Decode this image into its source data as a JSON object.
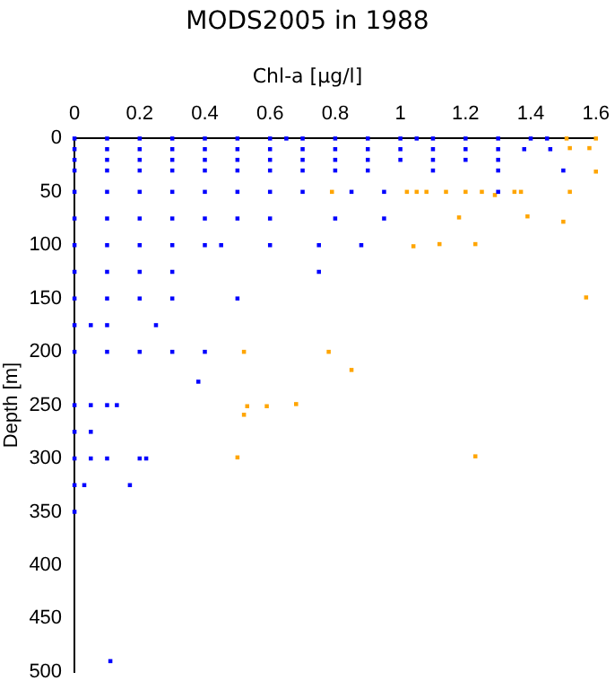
{
  "chart_data": {
    "type": "scatter",
    "title": "MODS2005 in 1988",
    "xlabel": "Chl-a [µg/l]",
    "ylabel": "Depth [m]",
    "xlim": [
      0,
      1.6
    ],
    "xticks": [
      0,
      0.2,
      0.4,
      0.6,
      0.8,
      1,
      1.2,
      1.4,
      1.6
    ],
    "ylim": [
      500,
      0
    ],
    "yticks": [
      0,
      50,
      100,
      150,
      200,
      250,
      300,
      350,
      400,
      450,
      500
    ],
    "grid": false,
    "legend": false,
    "marker": "square",
    "series": [
      {
        "color": "#0000ff",
        "x": [
          0,
          0.1,
          0.2,
          0.3,
          0.4,
          0.5,
          0.6,
          0.65,
          0.7,
          0.8,
          0.9,
          1.0,
          1.05,
          1.1,
          1.2,
          1.3,
          1.4,
          1.45,
          0,
          0.1,
          0.2,
          0.3,
          0.4,
          0.5,
          0.6,
          0.7,
          0.8,
          0.9,
          1.0,
          1.1,
          1.2,
          1.3,
          1.38,
          1.46,
          0,
          0.1,
          0.2,
          0.3,
          0.4,
          0.5,
          0.6,
          0.7,
          0.8,
          0.9,
          1.0,
          1.1,
          1.2,
          1.3,
          0,
          0.1,
          0.2,
          0.3,
          0.4,
          0.5,
          0.6,
          0.7,
          0.8,
          0.9,
          1.1,
          1.3,
          1.5,
          0,
          0.1,
          0.2,
          0.3,
          0.4,
          0.5,
          0.6,
          0.7,
          0.85,
          0.95,
          1.3,
          0,
          0.1,
          0.2,
          0.3,
          0.4,
          0.5,
          0.6,
          0.8,
          0.95,
          0,
          0.1,
          0.2,
          0.3,
          0.4,
          0.45,
          0.6,
          0.75,
          0.88,
          0,
          0.1,
          0.2,
          0.3,
          0.75,
          0,
          0.1,
          0.2,
          0.3,
          0.5,
          0,
          0.05,
          0.1,
          0.25,
          0,
          0.1,
          0.2,
          0.3,
          0.4,
          0.38,
          0,
          0.05,
          0.1,
          0.13,
          0,
          0.05,
          0,
          0.05,
          0.1,
          0.2,
          0.22,
          0,
          0.03,
          0.17,
          0,
          0.11
        ],
        "values": [
          0,
          0,
          0,
          0,
          0,
          0,
          0,
          0,
          0,
          0,
          0,
          0,
          0,
          0,
          0,
          0,
          0,
          0,
          10,
          10,
          10,
          10,
          10,
          10,
          10,
          10,
          10,
          10,
          10,
          10,
          10,
          10,
          10,
          10,
          20,
          20,
          20,
          20,
          20,
          20,
          20,
          20,
          20,
          20,
          20,
          20,
          20,
          20,
          30,
          30,
          30,
          30,
          30,
          30,
          30,
          30,
          30,
          30,
          30,
          30,
          30,
          50,
          50,
          50,
          50,
          50,
          50,
          50,
          50,
          50,
          50,
          50,
          75,
          75,
          75,
          75,
          75,
          75,
          75,
          75,
          75,
          100,
          100,
          100,
          100,
          100,
          100,
          100,
          100,
          100,
          125,
          125,
          125,
          125,
          125,
          150,
          150,
          150,
          150,
          150,
          175,
          175,
          175,
          175,
          200,
          200,
          200,
          200,
          200,
          228,
          250,
          250,
          250,
          250,
          275,
          275,
          300,
          300,
          300,
          300,
          300,
          325,
          325,
          325,
          350,
          490
        ]
      },
      {
        "color": "#ffa500",
        "x": [
          1.51,
          1.6,
          1.52,
          1.58,
          1.6,
          0.79,
          1.02,
          1.05,
          1.08,
          1.14,
          1.2,
          1.25,
          1.29,
          1.35,
          1.37,
          1.52,
          1.18,
          1.39,
          1.5,
          1.04,
          1.12,
          1.23,
          1.57,
          0.52,
          0.78,
          0.85,
          0.53,
          0.52,
          0.59,
          0.68,
          0.5,
          1.23
        ],
        "values": [
          0,
          0,
          9,
          9,
          31,
          50,
          50,
          50,
          50,
          50,
          50,
          50,
          53,
          50,
          50,
          50,
          74,
          73,
          78,
          101,
          99,
          99,
          149,
          200,
          200,
          217,
          251,
          259,
          251,
          249,
          299,
          298
        ]
      }
    ]
  }
}
